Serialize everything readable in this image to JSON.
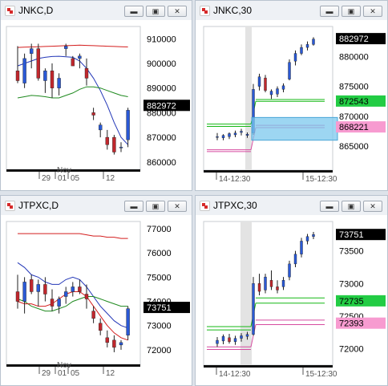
{
  "colors": {
    "up": "#2a59d6",
    "down": "#c0272d",
    "ma_slow": "#d41e1e",
    "ma_mid": "#2438b8",
    "ma_fast": "#1f8a1f",
    "pink": "#d64ca0",
    "green_line": "#14b814",
    "tag_green": "#22cc44",
    "tag_pink": "#f79bd0",
    "tag_black": "#000000"
  },
  "window_buttons": {
    "minimize": "▬",
    "maximize": "▣",
    "close": "✕"
  },
  "windows": [
    {
      "title": "JNKC,D",
      "icon": "chart-app-icon",
      "chart_data": {
        "type": "candlestick",
        "ylim": [
          857000,
          915000
        ],
        "price_labels": [
          "910000",
          "900000",
          "890000",
          "880000",
          "870000",
          "860000"
        ],
        "price_values": [
          910000,
          900000,
          890000,
          880000,
          870000,
          860000
        ],
        "current_tag": "882972",
        "current_value": 882972,
        "x_tick_labels": [
          "29",
          "01",
          "05",
          "12"
        ],
        "month_label": "Nov",
        "candles": [
          {
            "o": 897000,
            "h": 907000,
            "l": 892000,
            "c": 893000
          },
          {
            "o": 892000,
            "h": 904000,
            "l": 890000,
            "c": 902000
          },
          {
            "o": 904000,
            "h": 908000,
            "l": 898000,
            "c": 906000
          },
          {
            "o": 906000,
            "h": 908000,
            "l": 893000,
            "c": 894000
          },
          {
            "o": 893000,
            "h": 898000,
            "l": 888000,
            "c": 897000
          },
          {
            "o": 897000,
            "h": 900000,
            "l": 886000,
            "c": 890000
          },
          {
            "o": 890000,
            "h": 896000,
            "l": 887000,
            "c": 894000
          },
          {
            "o": 906000,
            "h": 908000,
            "l": 903000,
            "c": 907000
          },
          {
            "o": 902000,
            "h": 903000,
            "l": 899000,
            "c": 899000
          },
          {
            "o": 902000,
            "h": 904000,
            "l": 898000,
            "c": 903000
          },
          {
            "o": 898000,
            "h": 902000,
            "l": 891000,
            "c": 894000
          },
          {
            "o": 880000,
            "h": 882000,
            "l": 877000,
            "c": 879000
          },
          {
            "o": 873000,
            "h": 876000,
            "l": 870000,
            "c": 875000
          },
          {
            "o": 870000,
            "h": 873000,
            "l": 865000,
            "c": 867000
          },
          {
            "o": 870000,
            "h": 871000,
            "l": 863000,
            "c": 864000
          },
          {
            "o": 866000,
            "h": 868000,
            "l": 864000,
            "c": 866000
          },
          {
            "o": 869000,
            "h": 882000,
            "l": 866000,
            "c": 881000
          }
        ],
        "ma_slow": [
          906500,
          906600,
          906700,
          906800,
          906900,
          907000,
          907100,
          907200,
          907300,
          907400,
          907300,
          907200,
          907100,
          907000,
          906900,
          906800,
          906700
        ],
        "ma_mid": [
          899000,
          900000,
          901000,
          902000,
          902500,
          902800,
          902900,
          902700,
          902500,
          901000,
          898000,
          894000,
          889000,
          883000,
          876000,
          870000,
          867000
        ],
        "ma_fast": [
          886000,
          886500,
          887000,
          886800,
          886500,
          886000,
          886000,
          887000,
          888000,
          889500,
          890500,
          890500,
          890000,
          889000,
          888000,
          887000,
          886500
        ]
      }
    },
    {
      "title": "JNKC,30",
      "icon": "chart-app-icon",
      "chart_data": {
        "type": "candlestick",
        "ylim": [
          861000,
          885000
        ],
        "price_labels": [
          "880000",
          "875000",
          "870000",
          "865000"
        ],
        "price_values": [
          880000,
          875000,
          870000,
          865000
        ],
        "current_tag": "882972",
        "current_value": 882972,
        "level_tags": [
          {
            "label": "872543",
            "value": 872543,
            "kind": "green"
          },
          {
            "label": "868221",
            "value": 868221,
            "kind": "pink"
          }
        ],
        "x_tick_labels": [
          "14-12:30",
          "15-12:30"
        ],
        "candles": [
          {
            "o": 866500,
            "h": 867200,
            "l": 866000,
            "c": 866600
          },
          {
            "o": 866400,
            "h": 867000,
            "l": 866000,
            "c": 866800
          },
          {
            "o": 866600,
            "h": 867300,
            "l": 866200,
            "c": 867100
          },
          {
            "o": 866900,
            "h": 867600,
            "l": 866500,
            "c": 867200
          },
          {
            "o": 867300,
            "h": 867900,
            "l": 866800,
            "c": 867500
          },
          {
            "o": 866800,
            "h": 867300,
            "l": 866400,
            "c": 867000
          },
          {
            "o": 867200,
            "h": 875400,
            "l": 866900,
            "c": 874500
          },
          {
            "o": 875000,
            "h": 877100,
            "l": 874300,
            "c": 876600
          },
          {
            "o": 876400,
            "h": 876900,
            "l": 874000,
            "c": 874300
          },
          {
            "o": 873600,
            "h": 874500,
            "l": 872900,
            "c": 874200
          },
          {
            "o": 873700,
            "h": 875000,
            "l": 873200,
            "c": 874600
          },
          {
            "o": 874500,
            "h": 875500,
            "l": 874000,
            "c": 875100
          },
          {
            "o": 876200,
            "h": 879500,
            "l": 876000,
            "c": 879000
          },
          {
            "o": 879200,
            "h": 881000,
            "l": 878500,
            "c": 880500
          },
          {
            "o": 880500,
            "h": 882000,
            "l": 880200,
            "c": 881500
          },
          {
            "o": 881500,
            "h": 882500,
            "l": 881000,
            "c": 882000
          },
          {
            "o": 882000,
            "h": 883200,
            "l": 881800,
            "c": 882900
          }
        ],
        "support_lines": {
          "green": [
            872500,
            872800
          ],
          "pink": [
            868100,
            868500
          ],
          "pre_green": [
            868300,
            868700
          ],
          "pre_pink": [
            864100,
            864400
          ]
        },
        "highlight": {
          "from": 866000,
          "to": 869800
        }
      }
    },
    {
      "title": "JTPXC,D",
      "icon": "chart-app-icon",
      "chart_data": {
        "type": "candlestick",
        "ylim": [
          71400,
          77300
        ],
        "price_labels": [
          "77000",
          "76000",
          "75000",
          "74000",
          "73000",
          "72000"
        ],
        "price_values": [
          77000,
          76000,
          75000,
          74000,
          73000,
          72000
        ],
        "current_tag": "73751",
        "current_value": 73751,
        "x_tick_labels": [
          "29",
          "01",
          "05",
          "12"
        ],
        "month_label": "Nov",
        "candles": [
          {
            "o": 74400,
            "h": 75100,
            "l": 73700,
            "c": 74000
          },
          {
            "o": 74000,
            "h": 75000,
            "l": 73500,
            "c": 74800
          },
          {
            "o": 74900,
            "h": 75100,
            "l": 74300,
            "c": 74400
          },
          {
            "o": 74400,
            "h": 74900,
            "l": 73800,
            "c": 74700
          },
          {
            "o": 74700,
            "h": 75000,
            "l": 74000,
            "c": 74300
          },
          {
            "o": 74100,
            "h": 74500,
            "l": 73600,
            "c": 73800
          },
          {
            "o": 73800,
            "h": 74200,
            "l": 73500,
            "c": 74100
          },
          {
            "o": 74200,
            "h": 74600,
            "l": 73900,
            "c": 74400
          },
          {
            "o": 74400,
            "h": 74800,
            "l": 74200,
            "c": 74600
          },
          {
            "o": 74600,
            "h": 74900,
            "l": 74300,
            "c": 74400
          },
          {
            "o": 74300,
            "h": 74700,
            "l": 73700,
            "c": 74100
          },
          {
            "o": 73600,
            "h": 73800,
            "l": 73100,
            "c": 73300
          },
          {
            "o": 73100,
            "h": 73300,
            "l": 72600,
            "c": 72800
          },
          {
            "o": 72500,
            "h": 72800,
            "l": 72100,
            "c": 72300
          },
          {
            "o": 72400,
            "h": 72600,
            "l": 71900,
            "c": 72100
          },
          {
            "o": 72200,
            "h": 72400,
            "l": 72000,
            "c": 72300
          },
          {
            "o": 72600,
            "h": 73800,
            "l": 72400,
            "c": 73700
          }
        ],
        "ma_slow": [
          76800,
          76800,
          76800,
          76800,
          76800,
          76800,
          76800,
          76800,
          76800,
          76800,
          76750,
          76700,
          76700,
          76650,
          76650,
          76600,
          76600
        ],
        "ma_mid": [
          75600,
          75400,
          75100,
          75000,
          74800,
          74700,
          74700,
          74900,
          75000,
          74900,
          74600,
          74200,
          73800,
          73500,
          73200,
          73000,
          72900
        ],
        "ma_fast": [
          74100,
          74000,
          73800,
          73700,
          73600,
          73600,
          73700,
          73800,
          74000,
          74100,
          74200,
          74200,
          74100,
          74000,
          73900,
          73800,
          73800
        ],
        "ma_red": [
          74000,
          73900,
          73900,
          73800,
          73800,
          73900,
          74100,
          74300,
          74400,
          74400,
          74200,
          73800,
          73400,
          73000,
          72700,
          72500,
          72400
        ]
      }
    },
    {
      "title": "JTPXC,30",
      "icon": "chart-app-icon",
      "chart_data": {
        "type": "candlestick",
        "ylim": [
          71750,
          73950
        ],
        "price_labels": [
          "73500",
          "73000",
          "72500",
          "72000"
        ],
        "price_values": [
          73500,
          73000,
          72500,
          72000
        ],
        "current_tag": "73751",
        "current_value": 73751,
        "level_tags": [
          {
            "label": "72735",
            "value": 72735,
            "kind": "green"
          },
          {
            "label": "72393",
            "value": 72393,
            "kind": "pink"
          }
        ],
        "x_tick_labels": [
          "14-12:30",
          "15-12:30"
        ],
        "candles": [
          {
            "o": 72080,
            "h": 72180,
            "l": 72030,
            "c": 72130
          },
          {
            "o": 72120,
            "h": 72220,
            "l": 72070,
            "c": 72190
          },
          {
            "o": 72170,
            "h": 72230,
            "l": 72080,
            "c": 72110
          },
          {
            "o": 72110,
            "h": 72200,
            "l": 72060,
            "c": 72160
          },
          {
            "o": 72160,
            "h": 72240,
            "l": 72110,
            "c": 72200
          },
          {
            "o": 72190,
            "h": 72260,
            "l": 72140,
            "c": 72220
          },
          {
            "o": 72220,
            "h": 73100,
            "l": 72200,
            "c": 73000
          },
          {
            "o": 73000,
            "h": 73150,
            "l": 72820,
            "c": 72880
          },
          {
            "o": 72900,
            "h": 73150,
            "l": 72850,
            "c": 73100
          },
          {
            "o": 73050,
            "h": 73200,
            "l": 72900,
            "c": 72950
          },
          {
            "o": 72950,
            "h": 73050,
            "l": 72850,
            "c": 72900
          },
          {
            "o": 72950,
            "h": 73100,
            "l": 72900,
            "c": 73050
          },
          {
            "o": 73100,
            "h": 73350,
            "l": 73050,
            "c": 73300
          },
          {
            "o": 73300,
            "h": 73500,
            "l": 73250,
            "c": 73450
          },
          {
            "o": 73450,
            "h": 73700,
            "l": 73400,
            "c": 73650
          },
          {
            "o": 73650,
            "h": 73760,
            "l": 73600,
            "c": 73720
          },
          {
            "o": 73720,
            "h": 73790,
            "l": 73680,
            "c": 73750
          }
        ],
        "support_lines": {
          "green": [
            72700,
            72780
          ],
          "pink": [
            72370,
            72440
          ],
          "pre_green": [
            72290,
            72340
          ],
          "pre_pink": [
            71990,
            72030
          ]
        }
      }
    }
  ]
}
